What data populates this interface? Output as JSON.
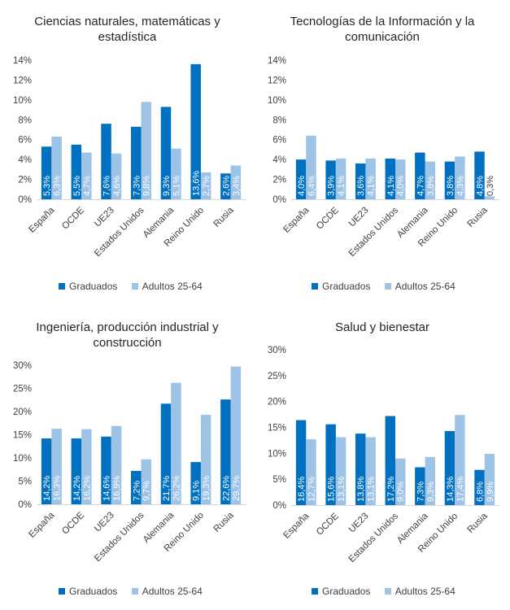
{
  "colors": {
    "graduados": "#0070c0",
    "adultos": "#9dc3e6",
    "axis": "#d9d9d9",
    "grid": "#d9d9d9"
  },
  "legend": {
    "graduados": "Graduados",
    "adultos": "Adultos 25-64"
  },
  "chart_data": [
    {
      "type": "bar",
      "title": [
        "Ciencias naturales, matemáticas y",
        "estadística"
      ],
      "categories": [
        "España",
        "OCDE",
        "UE23",
        "Estados Unidos",
        "Alemania",
        "Reino Unido",
        "Rusia"
      ],
      "series": [
        {
          "name": "Graduados",
          "values": [
            5.3,
            5.5,
            7.6,
            7.3,
            9.3,
            13.6,
            2.6
          ],
          "labels": [
            "5,3%",
            "5,5%",
            "7,6%",
            "7,3%",
            "9,3%",
            "13,6%",
            "2,6%"
          ]
        },
        {
          "name": "Adultos 25-64",
          "values": [
            6.3,
            4.7,
            4.6,
            9.8,
            5.1,
            2.7,
            3.4
          ],
          "labels": [
            "6,3%",
            "4,7%",
            "4,6%",
            "9,8%",
            "5,1%",
            "2,7%",
            "3,4%"
          ]
        }
      ],
      "ylim": [
        0,
        14
      ],
      "yticks": [
        0,
        2,
        4,
        6,
        8,
        10,
        12,
        14
      ],
      "ytick_labels": [
        "0%",
        "2%",
        "4%",
        "6%",
        "8%",
        "10%",
        "12%",
        "14%"
      ],
      "xlabel": "",
      "ylabel": "",
      "grid": false,
      "legend_position": "bottom"
    },
    {
      "type": "bar",
      "title": [
        "Tecnologías de la Información y la",
        "comunicación"
      ],
      "categories": [
        "España",
        "OCDE",
        "UE23",
        "Estados Unidos",
        "Alemania",
        "Reino Unido",
        "Rusia"
      ],
      "series": [
        {
          "name": "Graduados",
          "values": [
            4.0,
            3.9,
            3.6,
            4.1,
            4.7,
            3.8,
            4.8
          ],
          "labels": [
            "4,0%",
            "3,9%",
            "3,6%",
            "4,1%",
            "4,7%",
            "3,8%",
            "4,8%"
          ]
        },
        {
          "name": "Adultos 25-64",
          "values": [
            6.4,
            4.1,
            4.1,
            4.0,
            3.8,
            4.3,
            0.3
          ],
          "labels": [
            "6,4%",
            "4,1%",
            "4,1%",
            "4,0%",
            "3,8%",
            "4,3%",
            "0,3%"
          ]
        }
      ],
      "ylim": [
        0,
        14
      ],
      "yticks": [
        0,
        2,
        4,
        6,
        8,
        10,
        12,
        14
      ],
      "ytick_labels": [
        "0%",
        "2%",
        "4%",
        "6%",
        "8%",
        "10%",
        "12%",
        "14%"
      ],
      "xlabel": "",
      "ylabel": "",
      "grid": false,
      "legend_position": "bottom"
    },
    {
      "type": "bar",
      "title": [
        "Ingeniería, producción industrial y",
        "construcción"
      ],
      "categories": [
        "España",
        "OCDE",
        "UE23",
        "Estados Unidos",
        "Alemania",
        "Reino Unido",
        "Rusia"
      ],
      "series": [
        {
          "name": "Graduados",
          "values": [
            14.2,
            14.2,
            14.6,
            7.2,
            21.7,
            9.1,
            22.6
          ],
          "labels": [
            "14,2%",
            "14,2%",
            "14,6%",
            "7,2%",
            "21,7%",
            "9,1%",
            "22,6%"
          ]
        },
        {
          "name": "Adultos 25-64",
          "values": [
            16.3,
            16.2,
            16.9,
            9.7,
            26.2,
            19.3,
            29.7
          ],
          "labels": [
            "16,3%",
            "16,2%",
            "16,9%",
            "9,7%",
            "26,2%",
            "19,3%",
            "29,7%"
          ]
        }
      ],
      "ylim": [
        0,
        30
      ],
      "yticks": [
        0,
        5,
        10,
        15,
        20,
        25,
        30
      ],
      "ytick_labels": [
        "0%",
        "5%",
        "10%",
        "15%",
        "20%",
        "25%",
        "30%"
      ],
      "xlabel": "",
      "ylabel": "",
      "grid": false,
      "legend_position": "bottom"
    },
    {
      "type": "bar",
      "title": [
        "Salud y bienestar"
      ],
      "categories": [
        "España",
        "OCDE",
        "UE23",
        "Estados Unidos",
        "Alemania",
        "Reino Unido",
        "Rusia"
      ],
      "series": [
        {
          "name": "Graduados",
          "values": [
            16.4,
            15.6,
            13.8,
            17.2,
            7.3,
            14.3,
            6.8
          ],
          "labels": [
            "16,4%",
            "15,6%",
            "13,8%",
            "17,2%",
            "7,3%",
            "14,3%",
            "6,8%"
          ]
        },
        {
          "name": "Adultos 25-64",
          "values": [
            12.7,
            13.1,
            13.1,
            9.0,
            9.3,
            17.4,
            9.9
          ],
          "labels": [
            "12,7%",
            "13,1%",
            "13,1%",
            "9,0%",
            "9,3%",
            "17,4%",
            "9,9%"
          ]
        }
      ],
      "ylim": [
        0,
        30
      ],
      "yticks": [
        0,
        5,
        10,
        15,
        20,
        25,
        30
      ],
      "ytick_labels": [
        "0%",
        "5%",
        "10%",
        "15%",
        "20%",
        "25%",
        "30%"
      ],
      "xlabel": "",
      "ylabel": "",
      "grid": false,
      "legend_position": "bottom"
    }
  ]
}
